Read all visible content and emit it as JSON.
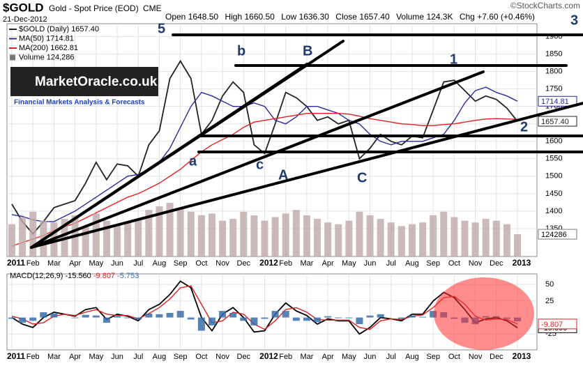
{
  "header": {
    "symbol": "$GOLD",
    "name": "Gold - Spot Price (EOD)",
    "exchange": "CME",
    "watermark": "©StockCharts.com",
    "date": "21-Dec-2012",
    "open_label": "Open",
    "open": "1648.50",
    "high_label": "High",
    "high": "1660.50",
    "low_label": "Low",
    "low": "1636.30",
    "close_label": "Close",
    "close": "1657.40",
    "chg_label": "Chg",
    "chg": "+7.60 (+0.46%)"
  },
  "logo": {
    "title": "MarketOracle.co.uk",
    "subtitle": "Financial Markets Analysis & Forecasts"
  },
  "wave_labels": [
    "5",
    "b",
    "B",
    "1",
    "3",
    "a",
    "c",
    "A",
    "C",
    "2"
  ],
  "chart_data": [
    {
      "type": "line",
      "categories": [
        "2011",
        null,
        "Feb",
        null,
        "Mar",
        null,
        "Apr",
        null,
        "May",
        null,
        "Jun",
        null,
        "Jul",
        null,
        "Aug",
        null,
        "Sep",
        null,
        "Oct",
        null,
        "Nov",
        null,
        "Dec",
        null,
        "2012",
        null,
        "Feb",
        null,
        "Mar",
        null,
        "Apr",
        null,
        "May",
        null,
        "Jun",
        null,
        "Jul",
        null,
        "Aug",
        null,
        "Sep",
        null,
        "Oct",
        null,
        "Nov",
        null,
        "Dec",
        null,
        "2013"
      ],
      "ylim": [
        1270,
        1937
      ],
      "yticks": [
        1350,
        1400,
        1450,
        1500,
        1550,
        1600,
        1650,
        1700,
        1750,
        1800,
        1850,
        1900
      ],
      "y2lim": [
        0,
        1300000
      ],
      "grid": true,
      "series": [
        {
          "name": "$GOLD (Daily)",
          "last_label": "1657.40",
          "color": "#222222",
          "values": [
            1420,
            1370,
            1335,
            1370,
            1410,
            1420,
            1430,
            1480,
            1540,
            1490,
            1535,
            1530,
            1500,
            1590,
            1630,
            1780,
            1830,
            1780,
            1620,
            1660,
            1730,
            1770,
            1740,
            1590,
            1565,
            1650,
            1740,
            1725,
            1700,
            1660,
            1670,
            1650,
            1660,
            1550,
            1580,
            1620,
            1600,
            1590,
            1615,
            1610,
            1690,
            1770,
            1775,
            1745,
            1715,
            1730,
            1720,
            1695,
            1657.4
          ]
        },
        {
          "name": "MA(50)",
          "last_label": "1714.81",
          "color": "#2a2a9a",
          "values": [
            1390,
            1385,
            1375,
            1370,
            1370,
            1385,
            1400,
            1420,
            1440,
            1460,
            1480,
            1500,
            1505,
            1520,
            1540,
            1580,
            1640,
            1700,
            1740,
            1730,
            1715,
            1700,
            1700,
            1710,
            1700,
            1660,
            1650,
            1670,
            1700,
            1700,
            1690,
            1680,
            1660,
            1650,
            1620,
            1600,
            1590,
            1600,
            1600,
            1600,
            1610,
            1620,
            1660,
            1710,
            1745,
            1755,
            1740,
            1730,
            1714.81
          ]
        },
        {
          "name": "MA(200)",
          "last_label": "1662.81",
          "color": "#e02020",
          "values": [
            1300,
            1310,
            1320,
            1330,
            1345,
            1355,
            1365,
            1380,
            1395,
            1410,
            1425,
            1440,
            1450,
            1465,
            1480,
            1500,
            1520,
            1545,
            1570,
            1590,
            1605,
            1620,
            1640,
            1655,
            1660,
            1665,
            1670,
            1675,
            1680,
            1680,
            1680,
            1680,
            1678,
            1672,
            1665,
            1660,
            1655,
            1650,
            1648,
            1645,
            1645,
            1648,
            1650,
            1655,
            1660,
            1664,
            1665,
            1664,
            1662.81
          ]
        },
        {
          "name": "Volume",
          "last_label": "124,286",
          "tag": "124286",
          "color": "#bfa9a9",
          "axis": "y2",
          "type": "bar",
          "values": [
            180000,
            220000,
            250000,
            200000,
            190000,
            210000,
            230000,
            170000,
            240000,
            200000,
            180000,
            190000,
            210000,
            260000,
            280000,
            300000,
            270000,
            250000,
            230000,
            240000,
            200000,
            210000,
            250000,
            230000,
            200000,
            220000,
            240000,
            260000,
            230000,
            210000,
            190000,
            180000,
            200000,
            250000,
            230000,
            210000,
            190000,
            170000,
            180000,
            190000,
            230000,
            250000,
            220000,
            200000,
            190000,
            210000,
            200000,
            180000,
            124286
          ]
        }
      ]
    },
    {
      "type": "line",
      "categories": [
        "2011",
        null,
        "Feb",
        null,
        "Mar",
        null,
        "Apr",
        null,
        "May",
        null,
        "Jun",
        null,
        "Jul",
        null,
        "Aug",
        null,
        "Sep",
        null,
        "Oct",
        null,
        "Nov",
        null,
        "Dec",
        null,
        "2012",
        null,
        "Feb",
        null,
        "Mar",
        null,
        "Apr",
        null,
        "May",
        null,
        "Jun",
        null,
        "Jul",
        null,
        "Aug",
        null,
        "Sep",
        null,
        "Oct",
        null,
        "Nov",
        null,
        "Dec",
        null,
        "2013"
      ],
      "ylim": [
        -49,
        66
      ],
      "yticks": [
        -25,
        25,
        50
      ],
      "grid": true,
      "series": [
        {
          "name": "MACD(12,26,9)",
          "last_label": "-15.560",
          "color": "#000000",
          "values": [
            0,
            -10,
            -15,
            0,
            8,
            5,
            2,
            12,
            15,
            -3,
            5,
            2,
            -5,
            12,
            20,
            35,
            55,
            45,
            0,
            -20,
            5,
            15,
            0,
            -22,
            -20,
            5,
            22,
            10,
            3,
            -10,
            -2,
            -5,
            -5,
            -25,
            -15,
            0,
            -2,
            -5,
            5,
            5,
            25,
            38,
            30,
            12,
            -8,
            -2,
            0,
            -5,
            -15.56
          ]
        },
        {
          "last_label": "-9.807",
          "color": "#e02020",
          "values": [
            2,
            -2,
            -10,
            -8,
            2,
            5,
            3,
            8,
            12,
            5,
            3,
            3,
            -2,
            6,
            15,
            28,
            45,
            48,
            20,
            -8,
            -5,
            8,
            5,
            -10,
            -18,
            -5,
            12,
            15,
            8,
            -3,
            -4,
            -4,
            -4,
            -15,
            -18,
            -5,
            -2,
            -3,
            2,
            4,
            15,
            30,
            32,
            20,
            2,
            -4,
            -2,
            -3,
            -9.807
          ]
        },
        {
          "last_label": "-5.753",
          "color": "#3a6ea8",
          "type": "bar",
          "values": [
            -2,
            -8,
            -5,
            8,
            6,
            0,
            -1,
            4,
            3,
            -8,
            2,
            -1,
            -3,
            6,
            5,
            7,
            10,
            -3,
            -20,
            -12,
            10,
            7,
            -5,
            -12,
            -2,
            10,
            10,
            -5,
            -5,
            -7,
            2,
            -1,
            -1,
            -10,
            3,
            5,
            0,
            -2,
            3,
            1,
            10,
            8,
            -2,
            -8,
            -10,
            2,
            2,
            -2,
            -5.753
          ]
        }
      ]
    }
  ]
}
